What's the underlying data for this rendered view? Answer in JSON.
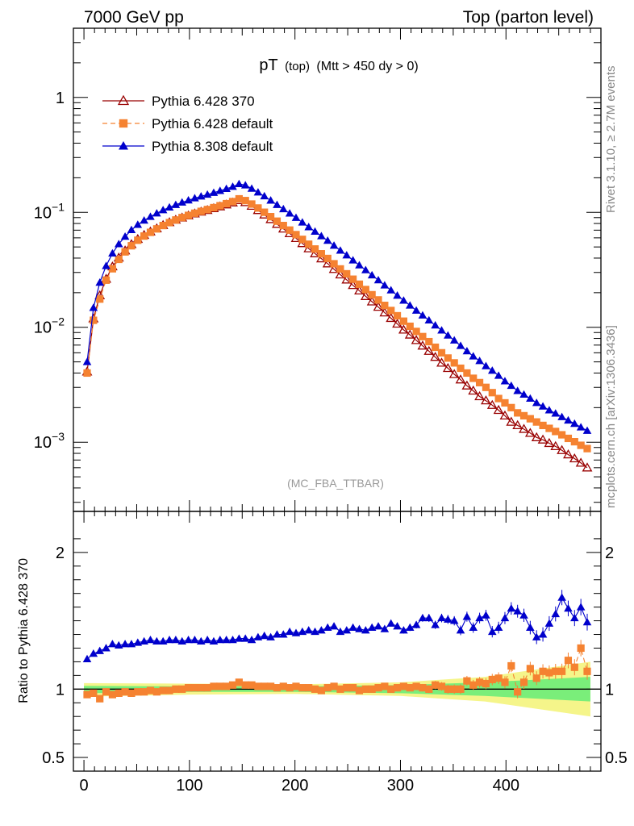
{
  "header": {
    "left": "7000 GeV pp",
    "right": "Top (parton level)"
  },
  "side_labels": {
    "rivet": "Rivet 3.1.10, ≥ 2.7M events",
    "mcplots": "mcplots.cern.ch [arXiv:1306.3436]"
  },
  "chart_data": [
    {
      "type": "line",
      "title_main": "pT",
      "title_sub": "(top)",
      "title_cond": "(Mtt > 450 dy > 0)",
      "watermark": "(MC_FBA_TTBAR)",
      "ylog": true,
      "ylim": [
        0.00025,
        4.0
      ],
      "xlim": [
        -10,
        490
      ],
      "y_ticks": [
        {
          "v": 1,
          "label": "1"
        },
        {
          "v": 0.1,
          "label": "10",
          "exp": "−1"
        },
        {
          "v": 0.01,
          "label": "10",
          "exp": "−2"
        },
        {
          "v": 0.001,
          "label": "10",
          "exp": "−3"
        }
      ],
      "legend": [
        {
          "label": "Pythia 6.428 370",
          "color": "#990000",
          "marker": "triangle-open",
          "dash": "none"
        },
        {
          "label": "Pythia 6.428 default",
          "color": "#f58231",
          "marker": "square",
          "dash": "6 4"
        },
        {
          "label": "Pythia 8.308 default",
          "color": "#0000cc",
          "marker": "triangle",
          "dash": "none"
        }
      ],
      "x": [
        3,
        9,
        15,
        21,
        27,
        33,
        39,
        45,
        51,
        57,
        63,
        69,
        75,
        81,
        87,
        93,
        99,
        105,
        111,
        117,
        123,
        129,
        135,
        141,
        147,
        153,
        159,
        165,
        171,
        177,
        183,
        189,
        195,
        201,
        207,
        213,
        219,
        225,
        231,
        237,
        243,
        249,
        255,
        261,
        267,
        273,
        279,
        285,
        291,
        297,
        303,
        309,
        315,
        321,
        327,
        333,
        339,
        345,
        351,
        357,
        363,
        369,
        375,
        381,
        387,
        393,
        399,
        405,
        411,
        417,
        423,
        429,
        435,
        441,
        447,
        453,
        459,
        465,
        471,
        477
      ],
      "series": [
        {
          "name": "Pythia 6.428 370",
          "color": "#990000",
          "values": [
            0.0041,
            0.0119,
            0.0189,
            0.0263,
            0.0337,
            0.0402,
            0.0464,
            0.0527,
            0.0584,
            0.0634,
            0.0679,
            0.0723,
            0.0772,
            0.0817,
            0.0859,
            0.0897,
            0.0936,
            0.0975,
            0.101,
            0.1044,
            0.1083,
            0.1123,
            0.1167,
            0.1213,
            0.1272,
            0.1221,
            0.1136,
            0.1042,
            0.0953,
            0.0869,
            0.079,
            0.0719,
            0.0655,
            0.0595,
            0.0537,
            0.0484,
            0.0438,
            0.0396,
            0.0358,
            0.032,
            0.0287,
            0.0259,
            0.0232,
            0.0208,
            0.0186,
            0.0167,
            0.015,
            0.0134,
            0.012,
            0.0107,
            0.0095,
            0.0086,
            0.0077,
            0.0069,
            0.0062,
            0.0055,
            0.0049,
            0.0044,
            0.0039,
            0.0035,
            0.0031,
            0.0028,
            0.0025,
            0.0023,
            0.0021,
            0.0019,
            0.0017,
            0.0015,
            0.0014,
            0.0013,
            0.0012,
            0.0011,
            0.00105,
            0.00098,
            0.00092,
            0.00085,
            0.00078,
            0.00072,
            0.00066,
            0.0006
          ]
        },
        {
          "name": "Pythia 6.428 default",
          "color": "#f58231",
          "values": [
            0.004,
            0.0115,
            0.0176,
            0.0257,
            0.0323,
            0.039,
            0.0453,
            0.0512,
            0.0572,
            0.0622,
            0.067,
            0.0718,
            0.0768,
            0.0814,
            0.0858,
            0.0901,
            0.0941,
            0.0983,
            0.102,
            0.1058,
            0.1099,
            0.1142,
            0.119,
            0.1241,
            0.1311,
            0.1266,
            0.1181,
            0.1091,
            0.1002,
            0.0917,
            0.0838,
            0.0768,
            0.0701,
            0.064,
            0.0582,
            0.0528,
            0.048,
            0.0436,
            0.0397,
            0.0357,
            0.0322,
            0.0292,
            0.0262,
            0.0237,
            0.0213,
            0.0192,
            0.0173,
            0.0155,
            0.014,
            0.0126,
            0.0113,
            0.0102,
            0.0092,
            0.0083,
            0.0075,
            0.0067,
            0.006,
            0.0054,
            0.0049,
            0.0044,
            0.004,
            0.0036,
            0.0033,
            0.003,
            0.0027,
            0.0024,
            0.0022,
            0.002,
            0.0018,
            0.0017,
            0.0016,
            0.0015,
            0.0014,
            0.00132,
            0.00124,
            0.00116,
            0.00108,
            0.00101,
            0.00094,
            0.00088
          ]
        },
        {
          "name": "Pythia 8.308 default",
          "color": "#0000cc",
          "values": [
            0.005,
            0.0148,
            0.0245,
            0.0342,
            0.044,
            0.053,
            0.0615,
            0.0703,
            0.0781,
            0.0851,
            0.0916,
            0.0981,
            0.1047,
            0.1106,
            0.1164,
            0.122,
            0.1273,
            0.1329,
            0.1379,
            0.1428,
            0.1482,
            0.1541,
            0.1603,
            0.1673,
            0.1768,
            0.1722,
            0.161,
            0.1493,
            0.1383,
            0.127,
            0.1163,
            0.1068,
            0.098,
            0.0898,
            0.0818,
            0.0745,
            0.0681,
            0.0622,
            0.0568,
            0.0514,
            0.0466,
            0.0424,
            0.0383,
            0.0347,
            0.0315,
            0.0284,
            0.0257,
            0.0232,
            0.021,
            0.0189,
            0.0171,
            0.0155,
            0.014,
            0.0127,
            0.0115,
            0.0104,
            0.0094,
            0.0085,
            0.0077,
            0.0069,
            0.0062,
            0.0056,
            0.0051,
            0.0046,
            0.0042,
            0.0038,
            0.0034,
            0.0031,
            0.0028,
            0.0026,
            0.0024,
            0.0022,
            0.00205,
            0.0019,
            0.00178,
            0.00166,
            0.00155,
            0.00145,
            0.00135,
            0.00126
          ]
        }
      ]
    },
    {
      "type": "line",
      "ylabel": "Ratio to Pythia 6.428 370",
      "ylim": [
        0.4,
        2.3
      ],
      "xlim": [
        -10,
        490
      ],
      "y_ticks": [
        {
          "v": 2,
          "label": "2"
        },
        {
          "v": 1,
          "label": "1"
        },
        {
          "v": 0.5,
          "label": "0.5"
        }
      ],
      "x_ticks": [
        {
          "v": 0,
          "label": "0"
        },
        {
          "v": 100,
          "label": "100"
        },
        {
          "v": 200,
          "label": "200"
        },
        {
          "v": 300,
          "label": "300"
        },
        {
          "v": 400,
          "label": "400"
        }
      ],
      "band_colors": {
        "inner": "#7aee7a",
        "outer": "#f5f58a"
      },
      "x": [
        3,
        9,
        15,
        21,
        27,
        33,
        39,
        45,
        51,
        57,
        63,
        69,
        75,
        81,
        87,
        93,
        99,
        105,
        111,
        117,
        123,
        129,
        135,
        141,
        147,
        153,
        159,
        165,
        171,
        177,
        183,
        189,
        195,
        201,
        207,
        213,
        219,
        225,
        231,
        237,
        243,
        249,
        255,
        261,
        267,
        273,
        279,
        285,
        291,
        297,
        303,
        309,
        315,
        321,
        327,
        333,
        339,
        345,
        351,
        357,
        363,
        369,
        375,
        381,
        387,
        393,
        399,
        405,
        411,
        417,
        423,
        429,
        435,
        441,
        447,
        453,
        459,
        465,
        471,
        477
      ],
      "series": [
        {
          "name": "Pythia 6.428 default",
          "color": "#f58231",
          "values": [
            0.96,
            0.97,
            0.93,
            0.98,
            0.96,
            0.97,
            0.98,
            0.97,
            0.98,
            0.98,
            0.99,
            0.98,
            0.99,
            0.99,
            1.0,
            1.0,
            1.01,
            1.01,
            1.01,
            1.01,
            1.02,
            1.02,
            1.02,
            1.03,
            1.05,
            1.03,
            1.03,
            1.02,
            1.02,
            1.02,
            1.01,
            1.02,
            1.01,
            1.02,
            1.01,
            1.01,
            1.0,
            0.99,
            1.01,
            1.02,
            1.0,
            1.01,
            1.01,
            0.99,
            1.0,
            1.0,
            1.01,
            1.02,
            1.0,
            1.01,
            1.02,
            1.01,
            1.02,
            1.01,
            1.0,
            1.03,
            1.02,
            1.0,
            1.0,
            1.0,
            1.06,
            1.03,
            1.05,
            1.04,
            1.07,
            1.08,
            1.05,
            1.17,
            0.98,
            1.05,
            1.15,
            1.08,
            1.13,
            1.12,
            1.13,
            1.13,
            1.21,
            1.16,
            1.3,
            1.13
          ]
        },
        {
          "name": "Pythia 8.308 default",
          "color": "#0000cc",
          "values": [
            1.22,
            1.26,
            1.28,
            1.3,
            1.33,
            1.32,
            1.33,
            1.33,
            1.34,
            1.35,
            1.36,
            1.35,
            1.35,
            1.36,
            1.36,
            1.35,
            1.36,
            1.36,
            1.35,
            1.36,
            1.35,
            1.36,
            1.36,
            1.36,
            1.37,
            1.37,
            1.36,
            1.38,
            1.39,
            1.38,
            1.4,
            1.4,
            1.42,
            1.41,
            1.42,
            1.43,
            1.42,
            1.43,
            1.45,
            1.46,
            1.42,
            1.43,
            1.45,
            1.44,
            1.43,
            1.45,
            1.46,
            1.44,
            1.48,
            1.46,
            1.43,
            1.45,
            1.47,
            1.52,
            1.52,
            1.47,
            1.52,
            1.51,
            1.5,
            1.43,
            1.53,
            1.45,
            1.52,
            1.54,
            1.42,
            1.45,
            1.52,
            1.59,
            1.57,
            1.54,
            1.45,
            1.38,
            1.4,
            1.48,
            1.55,
            1.67,
            1.59,
            1.52,
            1.6,
            1.49
          ]
        }
      ]
    }
  ]
}
